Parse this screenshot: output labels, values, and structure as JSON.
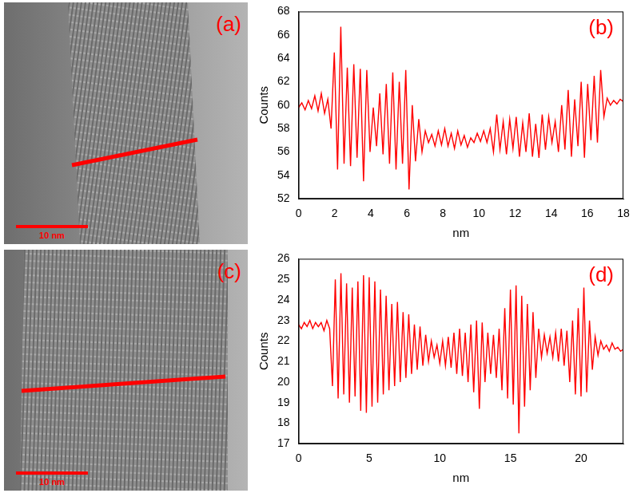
{
  "images": [
    {
      "panel_label": "(a)",
      "scale_bar_label": "10 nm"
    },
    {
      "panel_label": "(c)",
      "scale_bar_label": "10 nm"
    }
  ],
  "chart_data": [
    {
      "type": "line",
      "panel_label": "(b)",
      "x_label": "nm",
      "y_label": "Counts",
      "color": "#ff0000",
      "grid": false,
      "xlim": [
        0,
        18
      ],
      "xticks": [
        0,
        2,
        4,
        6,
        8,
        10,
        12,
        14,
        16,
        18
      ],
      "ylim": [
        52,
        68
      ],
      "yticks": [
        52,
        54,
        56,
        58,
        60,
        62,
        64,
        66,
        68
      ],
      "x": [
        0,
        0.18,
        0.36,
        0.54,
        0.72,
        0.9,
        1.08,
        1.26,
        1.44,
        1.62,
        1.8,
        1.98,
        2.16,
        2.34,
        2.52,
        2.7,
        2.88,
        3.06,
        3.24,
        3.42,
        3.6,
        3.78,
        3.96,
        4.14,
        4.32,
        4.5,
        4.68,
        4.86,
        5.04,
        5.22,
        5.4,
        5.58,
        5.76,
        5.94,
        6.12,
        6.3,
        6.48,
        6.66,
        6.84,
        7.02,
        7.2,
        7.38,
        7.56,
        7.74,
        7.92,
        8.1,
        8.28,
        8.46,
        8.64,
        8.82,
        9,
        9.18,
        9.36,
        9.54,
        9.72,
        9.9,
        10.08,
        10.26,
        10.44,
        10.62,
        10.8,
        10.98,
        11.16,
        11.34,
        11.52,
        11.7,
        11.88,
        12.06,
        12.24,
        12.42,
        12.6,
        12.78,
        12.96,
        13.14,
        13.32,
        13.5,
        13.68,
        13.86,
        14.04,
        14.22,
        14.4,
        14.58,
        14.76,
        14.94,
        15.12,
        15.3,
        15.48,
        15.66,
        15.84,
        16.02,
        16.2,
        16.38,
        16.56,
        16.74,
        16.92,
        17.1,
        17.28,
        17.46,
        17.64,
        17.82,
        18
      ],
      "values": [
        59.8,
        60.2,
        59.6,
        60.4,
        59.7,
        60.8,
        59.5,
        61.0,
        59.3,
        60.5,
        58.0,
        64.5,
        54.5,
        66.7,
        55.0,
        63.2,
        54.8,
        63.5,
        55.5,
        63.1,
        53.5,
        63.0,
        56.0,
        59.8,
        56.5,
        61.0,
        55.8,
        61.8,
        55.0,
        62.8,
        54.5,
        62.0,
        55.0,
        63.0,
        52.8,
        60.0,
        55.2,
        58.8,
        56.0,
        57.8,
        56.8,
        57.5,
        56.5,
        57.8,
        56.6,
        58.0,
        56.5,
        57.6,
        56.3,
        57.8,
        56.6,
        57.4,
        56.4,
        57.2,
        56.8,
        57.6,
        56.9,
        57.8,
        56.8,
        58.0,
        56.0,
        59.2,
        56.2,
        58.6,
        55.8,
        58.8,
        56.3,
        59.0,
        55.6,
        58.5,
        56.0,
        59.3,
        55.6,
        58.4,
        55.5,
        59.2,
        56.2,
        59.0,
        56.8,
        58.6,
        56.0,
        60.0,
        56.2,
        61.3,
        55.6,
        60.5,
        56.5,
        62.0,
        55.5,
        61.8,
        57.0,
        62.5,
        56.8,
        63.0,
        59.0,
        60.6,
        60.0,
        60.4,
        60.1,
        60.5,
        60.3
      ]
    },
    {
      "type": "line",
      "panel_label": "(d)",
      "x_label": "nm",
      "y_label": "Counts",
      "color": "#ff0000",
      "grid": false,
      "xlim": [
        0,
        23
      ],
      "xticks": [
        0,
        5,
        10,
        15,
        20
      ],
      "ylim": [
        17,
        26
      ],
      "yticks": [
        17,
        18,
        19,
        20,
        21,
        22,
        23,
        24,
        25,
        26
      ],
      "x": [
        0,
        0.2,
        0.4,
        0.6,
        0.8,
        1,
        1.2,
        1.4,
        1.6,
        1.8,
        2,
        2.2,
        2.4,
        2.6,
        2.8,
        3,
        3.2,
        3.4,
        3.6,
        3.8,
        4,
        4.2,
        4.4,
        4.6,
        4.8,
        5,
        5.2,
        5.4,
        5.6,
        5.8,
        6,
        6.2,
        6.4,
        6.6,
        6.8,
        7,
        7.2,
        7.4,
        7.6,
        7.8,
        8,
        8.2,
        8.4,
        8.6,
        8.8,
        9,
        9.2,
        9.4,
        9.6,
        9.8,
        10,
        10.2,
        10.4,
        10.6,
        10.8,
        11,
        11.2,
        11.4,
        11.6,
        11.8,
        12,
        12.2,
        12.4,
        12.6,
        12.8,
        13,
        13.2,
        13.4,
        13.6,
        13.8,
        14,
        14.2,
        14.4,
        14.6,
        14.8,
        15,
        15.2,
        15.4,
        15.6,
        15.8,
        16,
        16.2,
        16.4,
        16.6,
        16.8,
        17,
        17.2,
        17.4,
        17.6,
        17.8,
        18,
        18.2,
        18.4,
        18.6,
        18.8,
        19,
        19.2,
        19.4,
        19.6,
        19.8,
        20,
        20.2,
        20.4,
        20.6,
        20.8,
        21,
        21.2,
        21.4,
        21.6,
        21.8,
        22,
        22.2,
        22.4,
        22.6,
        22.8,
        23
      ],
      "values": [
        22.8,
        22.6,
        22.9,
        22.7,
        23.0,
        22.6,
        22.9,
        22.7,
        22.9,
        22.5,
        23.0,
        22.6,
        19.8,
        25.0,
        19.2,
        25.3,
        19.4,
        24.8,
        19.0,
        24.6,
        19.3,
        24.9,
        18.6,
        25.2,
        18.5,
        25.1,
        18.8,
        24.9,
        19.0,
        24.5,
        19.4,
        24.2,
        19.6,
        23.8,
        19.8,
        23.9,
        20.0,
        23.4,
        20.2,
        23.3,
        20.4,
        22.8,
        20.6,
        22.7,
        20.8,
        22.3,
        21.0,
        22.0,
        21.2,
        21.8,
        20.9,
        22.0,
        20.8,
        22.2,
        20.7,
        22.4,
        20.4,
        22.6,
        20.3,
        22.4,
        20.0,
        22.8,
        19.5,
        23.0,
        18.7,
        22.9,
        20.0,
        22.4,
        20.4,
        22.3,
        20.2,
        22.6,
        19.6,
        23.6,
        19.2,
        24.5,
        18.9,
        24.7,
        17.5,
        24.2,
        18.8,
        23.8,
        19.6,
        23.4,
        20.2,
        22.6,
        21.2,
        22.3,
        21.4,
        22.2,
        21.2,
        22.4,
        21.0,
        22.6,
        20.8,
        22.5,
        20.0,
        23.0,
        19.4,
        23.6,
        19.3,
        24.6,
        19.5,
        23.0,
        20.6,
        22.2,
        21.3,
        22.0,
        21.6,
        21.8,
        21.5,
        21.9,
        21.6,
        21.7,
        21.5,
        21.6
      ]
    }
  ]
}
